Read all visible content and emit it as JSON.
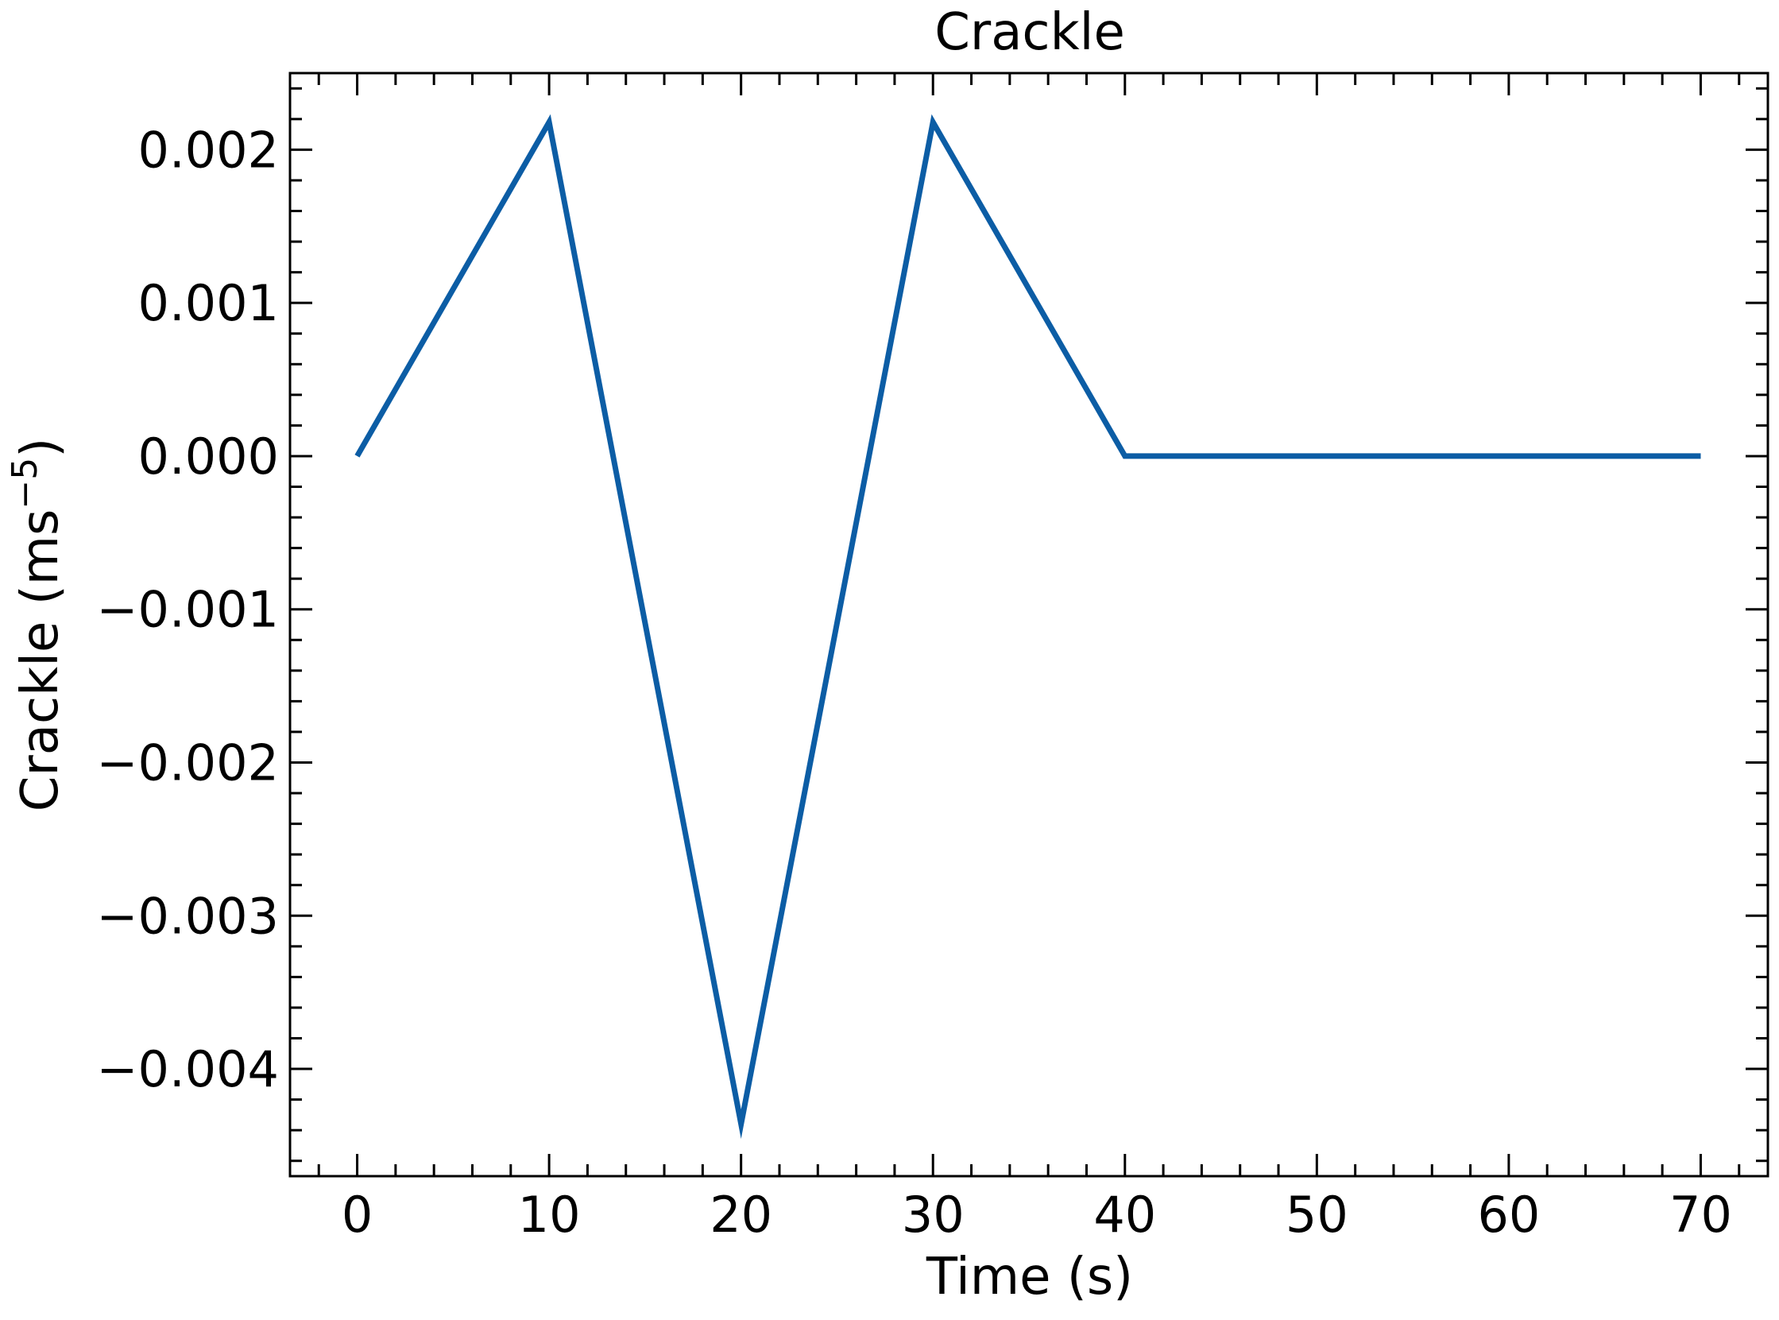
{
  "chart_data": {
    "type": "line",
    "title": "Crackle",
    "xlabel": "Time (s)",
    "ylabel_main": "Crackle (ms",
    "ylabel_sup": "−5",
    "ylabel_close": ")",
    "xlim": [
      -3.5,
      73.5
    ],
    "ylim": [
      -0.0047,
      0.0025
    ],
    "x_ticks": [
      0,
      10,
      20,
      30,
      40,
      50,
      60,
      70
    ],
    "x_tick_labels": [
      "0",
      "10",
      "20",
      "30",
      "40",
      "50",
      "60",
      "70"
    ],
    "x_minor_step": 2,
    "y_ticks": [
      -0.004,
      -0.003,
      -0.002,
      -0.001,
      0.0,
      0.001,
      0.002
    ],
    "y_tick_labels": [
      "−0.004",
      "−0.003",
      "−0.002",
      "−0.001",
      "0.000",
      "0.001",
      "0.002"
    ],
    "y_minor_step": 0.0002,
    "grid": false,
    "series": [
      {
        "color": "#0C5DA5",
        "x": [
          0,
          10,
          20,
          30,
          40,
          50,
          60,
          70
        ],
        "y": [
          0.0,
          0.00218,
          -0.00436,
          0.00218,
          0.0,
          0.0,
          0.0,
          0.0
        ]
      }
    ]
  }
}
